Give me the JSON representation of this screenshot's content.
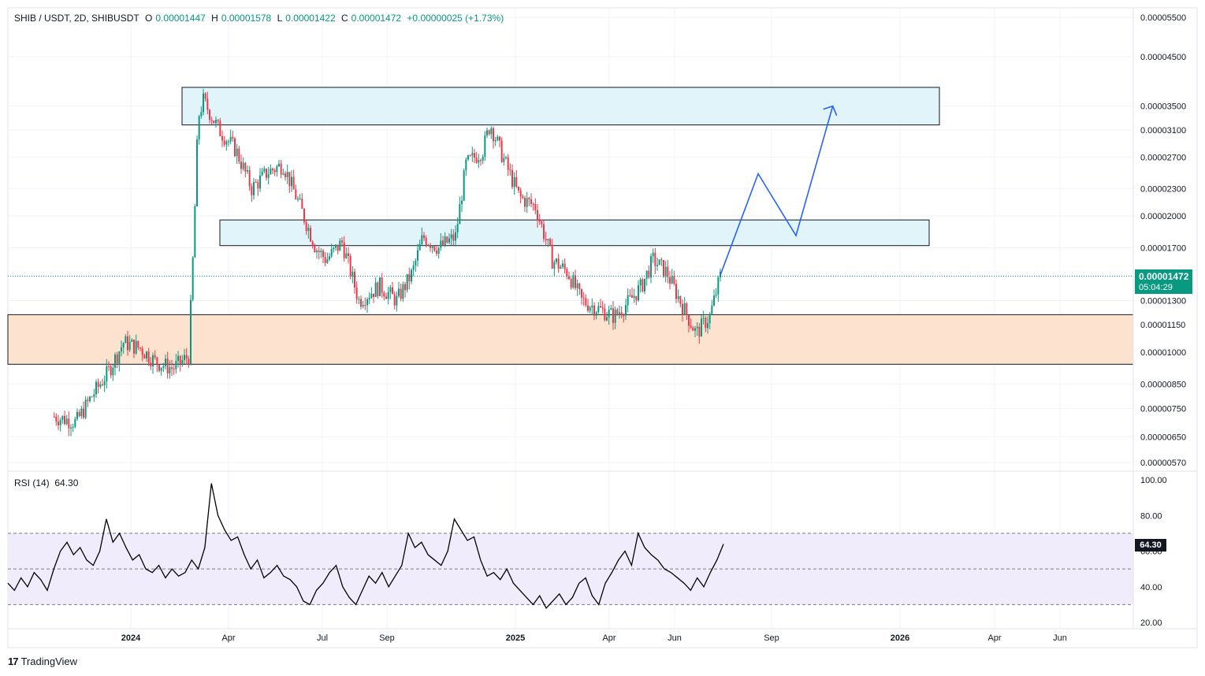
{
  "header": {
    "symbol": "SHIB / USDT, 2D, SHIBUSDT",
    "o_label": "O",
    "o_value": "0.00001447",
    "h_label": "H",
    "h_value": "0.00001578",
    "l_label": "L",
    "l_value": "0.00001422",
    "c_label": "C",
    "c_value": "0.00001472",
    "change": "+0.00000025 (+1.73%)"
  },
  "price_tag": {
    "price": "0.00001472",
    "countdown": "05:04:29"
  },
  "rsi": {
    "label": "RSI (14)",
    "value": "64.30",
    "tag": "64.30"
  },
  "branding": {
    "name": "TradingView"
  },
  "colors": {
    "up": "#089981",
    "down": "#f23645",
    "zone": "#e0f4fa",
    "demand": "#fde3cf",
    "rsi_band": "#f0ecfb",
    "rsi_line": "#000000",
    "projection": "#2962ff"
  },
  "chart_data": [
    {
      "type": "candlestick",
      "title": "SHIB / USDT, 2D, SHIBUSDT",
      "y_scale": "log",
      "y_ticks": [
        "0.00005500",
        "0.00004500",
        "0.00003500",
        "0.00003100",
        "0.00002700",
        "0.00002300",
        "0.00002000",
        "0.00001700",
        "0.00001300",
        "0.00001150",
        "0.00001000",
        "0.00000850",
        "0.00000750",
        "0.00000650",
        "0.00000570"
      ],
      "x_ticks": [
        "2024",
        "Apr",
        "Jul",
        "Sep",
        "2025",
        "Apr",
        "Jun",
        "Sep",
        "2026",
        "Apr",
        "Jun"
      ],
      "ylim": [
        5.5e-06,
        5.7e-05
      ],
      "series_close_path": [
        [
          "2023-10-20",
          7.2e-06
        ],
        [
          "2023-11-10",
          7e-06
        ],
        [
          "2023-11-25",
          8e-06
        ],
        [
          "2023-12-10",
          9e-06
        ],
        [
          "2023-12-25",
          1.05e-05
        ],
        [
          "2024-01-10",
          1.02e-05
        ],
        [
          "2024-01-25",
          9.5e-06
        ],
        [
          "2024-02-10",
          9.2e-06
        ],
        [
          "2024-02-25",
          9.8e-06
        ],
        [
          "2024-03-01",
          1.8e-05
        ],
        [
          "2024-03-05",
          3.3e-05
        ],
        [
          "2024-03-10",
          3.6e-05
        ],
        [
          "2024-03-25",
          3.1e-05
        ],
        [
          "2024-04-10",
          2.8e-05
        ],
        [
          "2024-04-25",
          2.3e-05
        ],
        [
          "2024-05-10",
          2.5e-05
        ],
        [
          "2024-05-25",
          2.6e-05
        ],
        [
          "2024-06-10",
          2.1e-05
        ],
        [
          "2024-06-25",
          1.7e-05
        ],
        [
          "2024-07-05",
          1.6e-05
        ],
        [
          "2024-07-20",
          1.75e-05
        ],
        [
          "2024-08-05",
          1.3e-05
        ],
        [
          "2024-08-25",
          1.4e-05
        ],
        [
          "2024-09-10",
          1.3e-05
        ],
        [
          "2024-09-25",
          1.5e-05
        ],
        [
          "2024-10-05",
          1.8e-05
        ],
        [
          "2024-10-20",
          1.7e-05
        ],
        [
          "2024-11-05",
          1.8e-05
        ],
        [
          "2024-11-15",
          2.6e-05
        ],
        [
          "2024-12-01",
          2.8e-05
        ],
        [
          "2024-12-08",
          3.2e-05
        ],
        [
          "2024-12-20",
          2.7e-05
        ],
        [
          "2025-01-05",
          2.2e-05
        ],
        [
          "2025-01-20",
          2.1e-05
        ],
        [
          "2025-02-05",
          1.6e-05
        ],
        [
          "2025-02-20",
          1.5e-05
        ],
        [
          "2025-03-05",
          1.3e-05
        ],
        [
          "2025-03-20",
          1.25e-05
        ],
        [
          "2025-04-05",
          1.2e-05
        ],
        [
          "2025-04-20",
          1.3e-05
        ],
        [
          "2025-05-01",
          1.4e-05
        ],
        [
          "2025-05-12",
          1.6e-05
        ],
        [
          "2025-05-25",
          1.5e-05
        ],
        [
          "2025-06-10",
          1.25e-05
        ],
        [
          "2025-06-22",
          1.1e-05
        ],
        [
          "2025-07-05",
          1.2e-05
        ],
        [
          "2025-07-15",
          1.47e-05
        ]
      ],
      "zones": [
        {
          "name": "upper-resistance",
          "from": 3.18e-05,
          "to": 3.85e-05
        },
        {
          "name": "mid-resistance",
          "from": 1.72e-05,
          "to": 1.96e-05
        },
        {
          "name": "demand",
          "from": 9.4e-06,
          "to": 1.21e-05
        }
      ],
      "projection": [
        [
          "2025-07-15",
          1.48e-05
        ],
        [
          "2025-08-20",
          2.48e-05
        ],
        [
          "2025-09-25",
          1.81e-05
        ],
        [
          "2025-10-30",
          3.5e-05
        ]
      ]
    },
    {
      "type": "line",
      "title": "RSI (14)",
      "y_ticks": [
        "100.00",
        "80.00",
        "60.00",
        "40.00",
        "20.00"
      ],
      "ylim": [
        20,
        100
      ],
      "bands": [
        30,
        50,
        70
      ],
      "values": [
        42,
        38,
        45,
        40,
        48,
        44,
        38,
        50,
        60,
        65,
        58,
        62,
        55,
        52,
        60,
        78,
        65,
        70,
        62,
        55,
        58,
        50,
        48,
        52,
        45,
        50,
        46,
        48,
        55,
        50,
        62,
        98,
        80,
        72,
        66,
        68,
        58,
        50,
        55,
        45,
        48,
        52,
        46,
        44,
        40,
        32,
        30,
        38,
        42,
        48,
        52,
        40,
        34,
        30,
        38,
        46,
        42,
        48,
        40,
        46,
        52,
        70,
        62,
        65,
        58,
        55,
        52,
        60,
        78,
        72,
        66,
        68,
        55,
        46,
        48,
        44,
        50,
        42,
        38,
        34,
        30,
        35,
        28,
        32,
        36,
        30,
        34,
        42,
        45,
        35,
        30,
        42,
        48,
        55,
        60,
        52,
        70,
        62,
        58,
        55,
        50,
        48,
        45,
        42,
        38,
        45,
        40,
        48,
        55,
        64
      ]
    }
  ]
}
